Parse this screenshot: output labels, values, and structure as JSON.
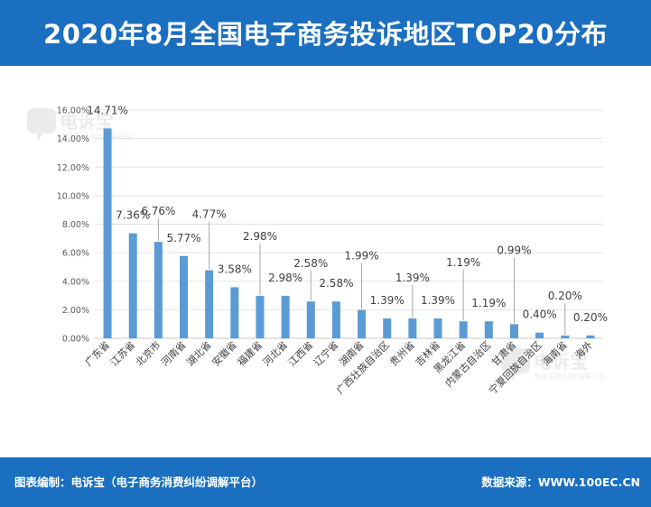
{
  "header": {
    "title": "2020年8月全国电子商务投诉地区TOP20分布"
  },
  "footer": {
    "left_text": "图表编制：电诉宝（电子商务消费纠纷调解平台）",
    "right_text": "数据来源：WWW.100EC.CN"
  },
  "watermark": {
    "text": "电诉宝",
    "subtext": "电商消费纠纷调解平台"
  },
  "chart_data": {
    "type": "bar",
    "categories": [
      "广东省",
      "江苏省",
      "北京市",
      "河南省",
      "湖北省",
      "安徽省",
      "福建省",
      "河北省",
      "江西省",
      "辽宁省",
      "湖南省",
      "广西壮族自治区",
      "贵州省",
      "吉林省",
      "黑龙江省",
      "内蒙古自治区",
      "甘肃省",
      "宁夏回族自治区",
      "海南省",
      "海外"
    ],
    "values": [
      14.71,
      7.36,
      6.76,
      5.77,
      4.77,
      3.58,
      2.98,
      2.98,
      2.58,
      2.58,
      1.99,
      1.39,
      1.39,
      1.39,
      1.19,
      1.19,
      0.99,
      0.4,
      0.2,
      0.2
    ],
    "data_labels": [
      "14.71%",
      "7.36%",
      "6.76%",
      "5.77%",
      "4.77%",
      "3.58%",
      "2.98%",
      "2.98%",
      "2.58%",
      "2.58%",
      "1.99%",
      "1.39%",
      "1.39%",
      "1.39%",
      "1.19%",
      "1.19%",
      "0.99%",
      "0.40%",
      "0.20%",
      "0.20%"
    ],
    "yticks": [
      "0.00%",
      "2.00%",
      "4.00%",
      "6.00%",
      "8.00%",
      "10.00%",
      "12.00%",
      "14.00%",
      "16.00%"
    ],
    "ylim": [
      0,
      16
    ],
    "grid": true,
    "bar_color": "#5b9bd5"
  }
}
